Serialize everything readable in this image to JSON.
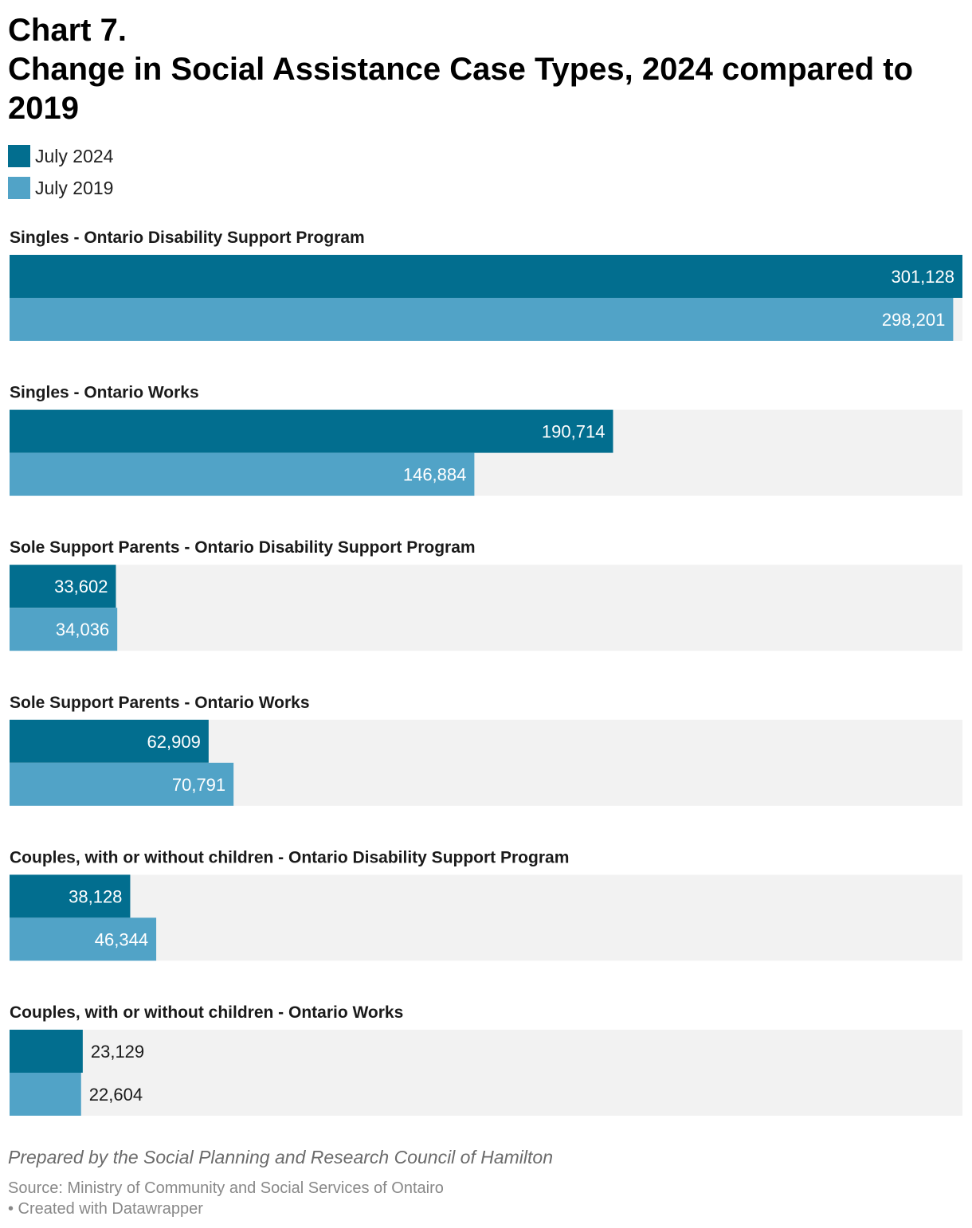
{
  "title": {
    "line1": "Chart 7.",
    "line2": "Change in Social Assistance Case Types, 2024 compared to 2019"
  },
  "legend": [
    {
      "label": "July 2024",
      "color": "#026e8f"
    },
    {
      "label": "July 2019",
      "color": "#51a3c7"
    }
  ],
  "chart_data": {
    "type": "bar",
    "orientation": "horizontal",
    "xlim": [
      0,
      301128
    ],
    "grid": false,
    "legend_position": "top-left",
    "background_track_color": "#f2f2f2",
    "categories": [
      "Singles - Ontario Disability Support Program",
      "Singles - Ontario Works",
      "Sole Support Parents - Ontario Disability Support Program",
      "Sole Support Parents - Ontario Works",
      "Couples, with or without children - Ontario Disability Support Program",
      "Couples, with or without children - Ontario Works"
    ],
    "series": [
      {
        "name": "July 2024",
        "color": "#026e8f",
        "values": [
          301128,
          190714,
          33602,
          62909,
          38128,
          23129
        ]
      },
      {
        "name": "July 2019",
        "color": "#51a3c7",
        "values": [
          298201,
          146884,
          34036,
          70791,
          46344,
          22604
        ]
      }
    ]
  },
  "footer": {
    "credit": "Prepared by the Social Planning and Research Council of Hamilton",
    "source": "Source: Ministry of Community and Social Services of Ontairo",
    "made_with": "• Created with Datawrapper"
  }
}
